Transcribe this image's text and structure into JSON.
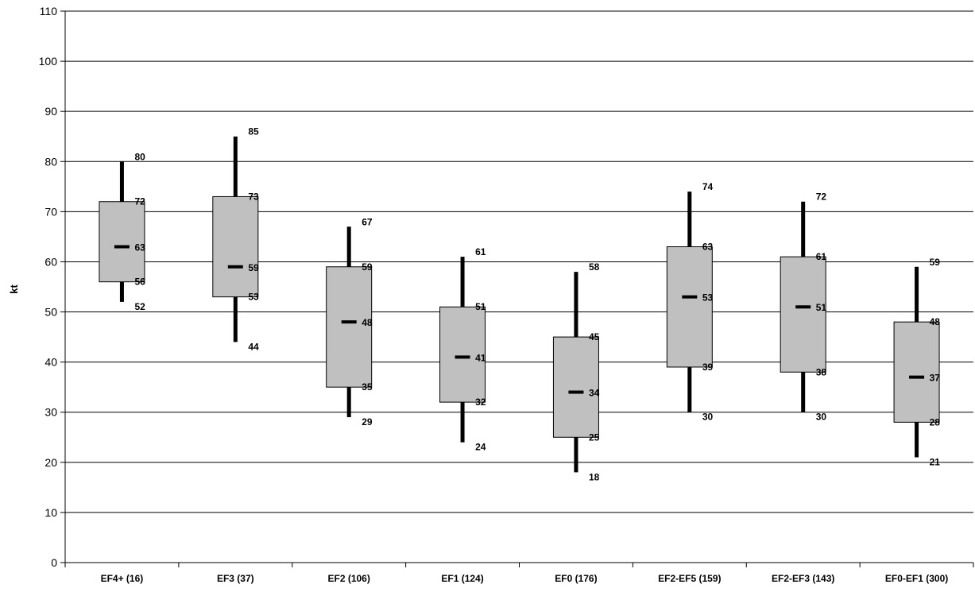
{
  "chart_data": {
    "type": "box",
    "title": "",
    "xlabel": "",
    "ylabel": "kt",
    "ylim": [
      0,
      110
    ],
    "yticks": [
      "0",
      "10",
      "20",
      "30",
      "40",
      "50",
      "60",
      "70",
      "80",
      "90",
      "100",
      "110"
    ],
    "grid": true,
    "legend": "none",
    "categories": [
      "EF4+ (16)",
      "EF3 (37)",
      "EF2 (106)",
      "EF1 (124)",
      "EF0 (176)",
      "EF2-EF5 (159)",
      "EF2-EF3 (143)",
      "EF0-EF1 (300)"
    ],
    "boxes": [
      {
        "min": 52,
        "q1": 56,
        "median": 63,
        "q3": 72,
        "max": 80
      },
      {
        "min": 44,
        "q1": 53,
        "median": 59,
        "q3": 73,
        "max": 85
      },
      {
        "min": 29,
        "q1": 35,
        "median": 48,
        "q3": 59,
        "max": 67
      },
      {
        "min": 24,
        "q1": 32,
        "median": 41,
        "q3": 51,
        "max": 61
      },
      {
        "min": 18,
        "q1": 25,
        "median": 34,
        "q3": 45,
        "max": 58
      },
      {
        "min": 30,
        "q1": 39,
        "median": 53,
        "q3": 63,
        "max": 74
      },
      {
        "min": 30,
        "q1": 38,
        "median": 51,
        "q3": 61,
        "max": 72
      },
      {
        "min": 21,
        "q1": 28,
        "median": 37,
        "q3": 48,
        "max": 59
      }
    ],
    "colors": {
      "box_fill": "#c0c0c0",
      "box_stroke": "#000000",
      "whisker": "#000000",
      "grid": "#000000",
      "background": "#ffffff"
    }
  }
}
